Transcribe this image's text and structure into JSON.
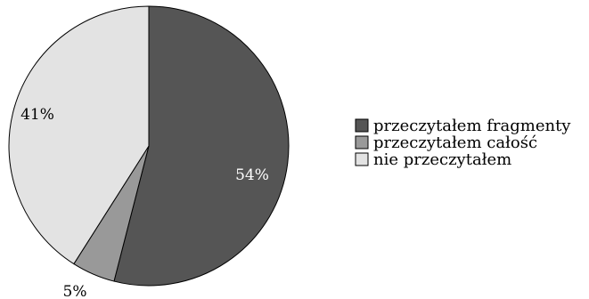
{
  "chart_data": {
    "type": "pie",
    "slices": [
      {
        "label": "przeczytałem fragmenty",
        "value": 54,
        "value_label": "54%",
        "color": "#555555",
        "label_color": "#ffffff"
      },
      {
        "label": "przeczytałem całość",
        "value": 5,
        "value_label": "5%",
        "color": "#999999",
        "label_color": "#000000"
      },
      {
        "label": "nie przeczytałem",
        "value": 41,
        "value_label": "41%",
        "color": "#e3e3e3",
        "label_color": "#000000"
      }
    ],
    "start_angle": "12 o'clock",
    "direction": "clockwise",
    "legend_position": "right"
  }
}
